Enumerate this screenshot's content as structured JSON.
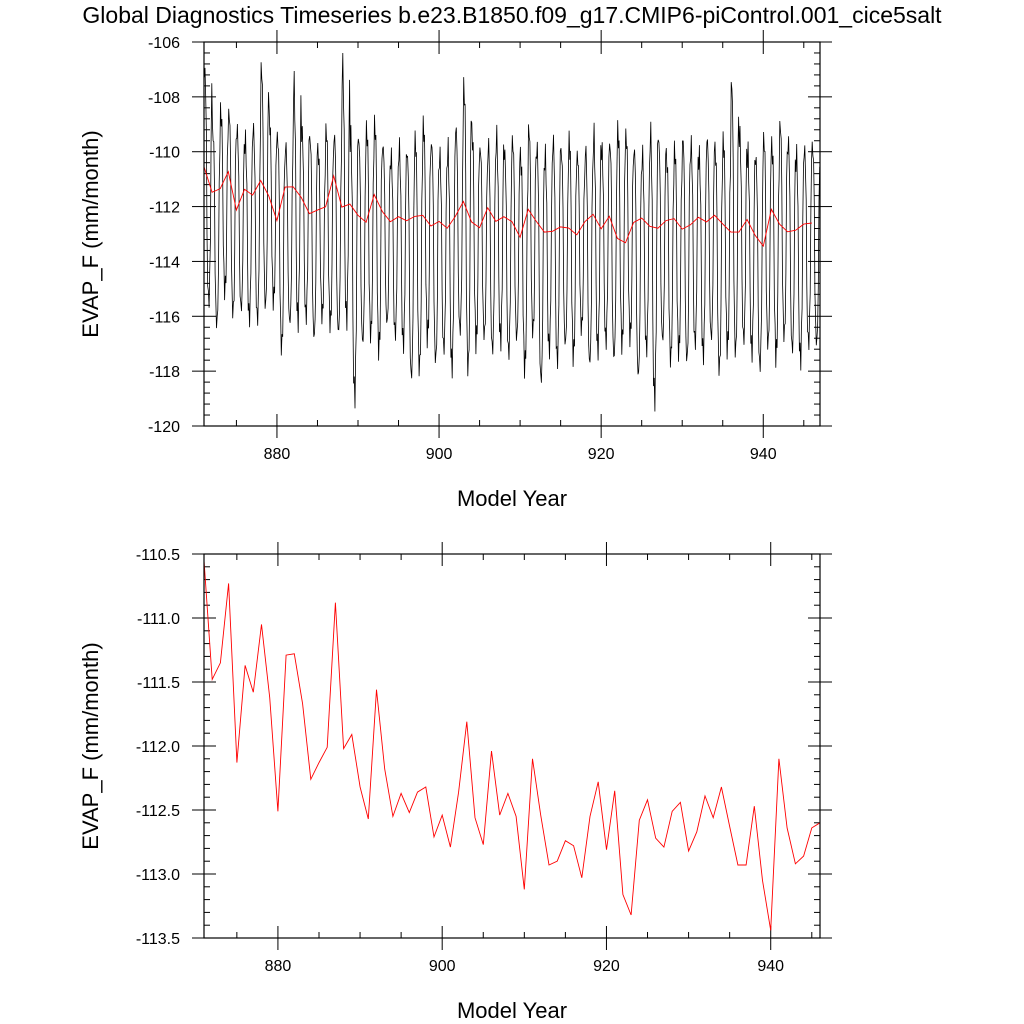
{
  "title": "Global Diagnostics Timeseries b.e23.B1850.f09_g17.CMIP6-piControl.001_cice5salt",
  "colors": {
    "monthly": "#000000",
    "annual": "#ff0000"
  },
  "chart_data": [
    {
      "type": "line",
      "xlabel": "Model Year",
      "ylabel": "EVAP_F (mm/month)",
      "xlim": [
        871,
        947
      ],
      "ylim": [
        -120,
        -106
      ],
      "xticks": [
        880,
        900,
        920,
        940
      ],
      "yticks": [
        -120,
        -118,
        -116,
        -114,
        -112,
        -110,
        -108,
        -106
      ],
      "ytick_labels": [
        "-120",
        "-118",
        "-116",
        "-114",
        "-112",
        "-110",
        "-108",
        "-106"
      ],
      "series": [
        {
          "key": "monthly",
          "x_start": 871.04,
          "x_step": 0.08333,
          "monthly_envelope": {
            "years": [
              871,
              872,
              873,
              874,
              875,
              876,
              877,
              878,
              879,
              880,
              881,
              882,
              883,
              884,
              885,
              886,
              887,
              888,
              889,
              890,
              891,
              892,
              893,
              894,
              895,
              896,
              897,
              898,
              899,
              900,
              901,
              902,
              903,
              904,
              905,
              906,
              907,
              908,
              909,
              910,
              911,
              912,
              913,
              914,
              915,
              916,
              917,
              918,
              919,
              920,
              921,
              922,
              923,
              924,
              925,
              926,
              927,
              928,
              929,
              930,
              931,
              932,
              933,
              934,
              935,
              936,
              937,
              938,
              939,
              940,
              941,
              942,
              943,
              944,
              945,
              946
            ],
            "max": [
              -106.3,
              -108.6,
              -108.0,
              -107.9,
              -108.6,
              -109.0,
              -108.5,
              -106.2,
              -108.3,
              -108.8,
              -109.2,
              -106.8,
              -108.7,
              -108.9,
              -109.5,
              -108.6,
              -108.8,
              -106.1,
              -108.6,
              -108.9,
              -108.6,
              -108.3,
              -109.2,
              -109.6,
              -109.2,
              -109.4,
              -108.9,
              -108.4,
              -109.0,
              -109.5,
              -109.2,
              -108.5,
              -106.8,
              -108.7,
              -109.3,
              -109.1,
              -108.8,
              -109.4,
              -109.0,
              -109.6,
              -108.5,
              -109.1,
              -109.5,
              -108.9,
              -109.4,
              -109.0,
              -109.6,
              -109.2,
              -108.7,
              -109.3,
              -109.1,
              -108.6,
              -108.8,
              -109.2,
              -109.5,
              -108.5,
              -108.9,
              -109.6,
              -109.3,
              -108.8,
              -109.1,
              -109.5,
              -108.9,
              -109.3,
              -109.0,
              -106.6,
              -108.7,
              -109.4,
              -109.6,
              -108.9,
              -109.2,
              -108.3,
              -109.0,
              -109.5,
              -109.3,
              -109.2
            ],
            "min": [
              -116.2,
              -116.9,
              -115.6,
              -116.5,
              -116.3,
              -116.6,
              -116.7,
              -116.4,
              -116.0,
              -117.8,
              -116.8,
              -116.9,
              -116.6,
              -117.4,
              -116.5,
              -116.9,
              -117.2,
              -116.9,
              -119.7,
              -117.6,
              -117.3,
              -117.9,
              -116.8,
              -117.2,
              -117.6,
              -118.9,
              -118.6,
              -117.4,
              -118.3,
              -117.8,
              -118.5,
              -117.2,
              -118.8,
              -117.6,
              -117.3,
              -117.9,
              -117.5,
              -118.0,
              -117.4,
              -118.5,
              -117.2,
              -119.1,
              -117.8,
              -118.3,
              -117.6,
              -118.1,
              -117.0,
              -118.4,
              -117.9,
              -117.5,
              -118.2,
              -117.7,
              -117.4,
              -118.9,
              -117.8,
              -119.8,
              -117.5,
              -118.2,
              -117.9,
              -118.3,
              -117.6,
              -118.0,
              -117.4,
              -118.6,
              -117.8,
              -118.2,
              -117.5,
              -117.9,
              -118.5,
              -117.7,
              -118.1,
              -117.4,
              -117.9,
              -118.2,
              -117.6,
              -117.6
            ]
          }
        },
        {
          "key": "annual",
          "x": [
            871,
            872,
            873,
            874,
            875,
            876,
            877,
            878,
            879,
            880,
            881,
            882,
            883,
            884,
            885,
            886,
            887,
            888,
            889,
            890,
            891,
            892,
            893,
            894,
            895,
            896,
            897,
            898,
            899,
            900,
            901,
            902,
            903,
            904,
            905,
            906,
            907,
            908,
            909,
            910,
            911,
            912,
            913,
            914,
            915,
            916,
            917,
            918,
            919,
            920,
            921,
            922,
            923,
            924,
            925,
            926,
            927,
            928,
            929,
            930,
            931,
            932,
            933,
            934,
            935,
            936,
            937,
            938,
            939,
            940,
            941,
            942,
            943,
            944,
            945,
            946
          ],
          "values": [
            -110.55,
            -111.48,
            -111.35,
            -110.73,
            -112.13,
            -111.37,
            -111.58,
            -111.05,
            -111.62,
            -112.51,
            -111.29,
            -111.28,
            -111.67,
            -112.26,
            -112.13,
            -112.01,
            -110.88,
            -112.02,
            -111.91,
            -112.32,
            -112.57,
            -111.56,
            -112.18,
            -112.55,
            -112.37,
            -112.52,
            -112.36,
            -112.32,
            -112.71,
            -112.54,
            -112.79,
            -112.36,
            -111.81,
            -112.56,
            -112.77,
            -112.04,
            -112.54,
            -112.37,
            -112.55,
            -113.12,
            -112.1,
            -112.54,
            -112.93,
            -112.9,
            -112.74,
            -112.78,
            -113.03,
            -112.55,
            -112.28,
            -112.81,
            -112.35,
            -113.16,
            -113.32,
            -112.58,
            -112.42,
            -112.72,
            -112.79,
            -112.51,
            -112.44,
            -112.82,
            -112.67,
            -112.39,
            -112.56,
            -112.32,
            -112.63,
            -112.93,
            -112.93,
            -112.47,
            -113.05,
            -113.44,
            -112.1,
            -112.64,
            -112.92,
            -112.86,
            -112.64,
            -112.6
          ]
        }
      ]
    },
    {
      "type": "line",
      "xlabel": "Model Year",
      "ylabel": "EVAP_F (mm/month)",
      "xlim": [
        871,
        946
      ],
      "ylim": [
        -113.5,
        -110.5
      ],
      "xticks": [
        880,
        900,
        920,
        940
      ],
      "yticks": [
        -113.5,
        -113.0,
        -112.5,
        -112.0,
        -111.5,
        -111.0,
        -110.5
      ],
      "ytick_labels": [
        "-113.5",
        "-113.0",
        "-112.5",
        "-112.0",
        "-111.5",
        "-111.0",
        "-110.5"
      ],
      "series": [
        {
          "key": "annual",
          "x": [
            871,
            872,
            873,
            874,
            875,
            876,
            877,
            878,
            879,
            880,
            881,
            882,
            883,
            884,
            885,
            886,
            887,
            888,
            889,
            890,
            891,
            892,
            893,
            894,
            895,
            896,
            897,
            898,
            899,
            900,
            901,
            902,
            903,
            904,
            905,
            906,
            907,
            908,
            909,
            910,
            911,
            912,
            913,
            914,
            915,
            916,
            917,
            918,
            919,
            920,
            921,
            922,
            923,
            924,
            925,
            926,
            927,
            928,
            929,
            930,
            931,
            932,
            933,
            934,
            935,
            936,
            937,
            938,
            939,
            940,
            941,
            942,
            943,
            944,
            945,
            946
          ],
          "values": [
            -110.55,
            -111.48,
            -111.35,
            -110.73,
            -112.13,
            -111.37,
            -111.58,
            -111.05,
            -111.62,
            -112.51,
            -111.29,
            -111.28,
            -111.67,
            -112.26,
            -112.13,
            -112.01,
            -110.88,
            -112.02,
            -111.91,
            -112.32,
            -112.57,
            -111.56,
            -112.18,
            -112.55,
            -112.37,
            -112.52,
            -112.36,
            -112.32,
            -112.71,
            -112.54,
            -112.79,
            -112.36,
            -111.81,
            -112.56,
            -112.77,
            -112.04,
            -112.54,
            -112.37,
            -112.55,
            -113.12,
            -112.1,
            -112.54,
            -112.93,
            -112.9,
            -112.74,
            -112.78,
            -113.03,
            -112.55,
            -112.28,
            -112.81,
            -112.35,
            -113.16,
            -113.32,
            -112.58,
            -112.42,
            -112.72,
            -112.79,
            -112.51,
            -112.44,
            -112.82,
            -112.67,
            -112.39,
            -112.56,
            -112.32,
            -112.63,
            -112.93,
            -112.93,
            -112.47,
            -113.05,
            -113.44,
            -112.1,
            -112.64,
            -112.92,
            -112.86,
            -112.64,
            -112.6
          ]
        }
      ]
    }
  ]
}
